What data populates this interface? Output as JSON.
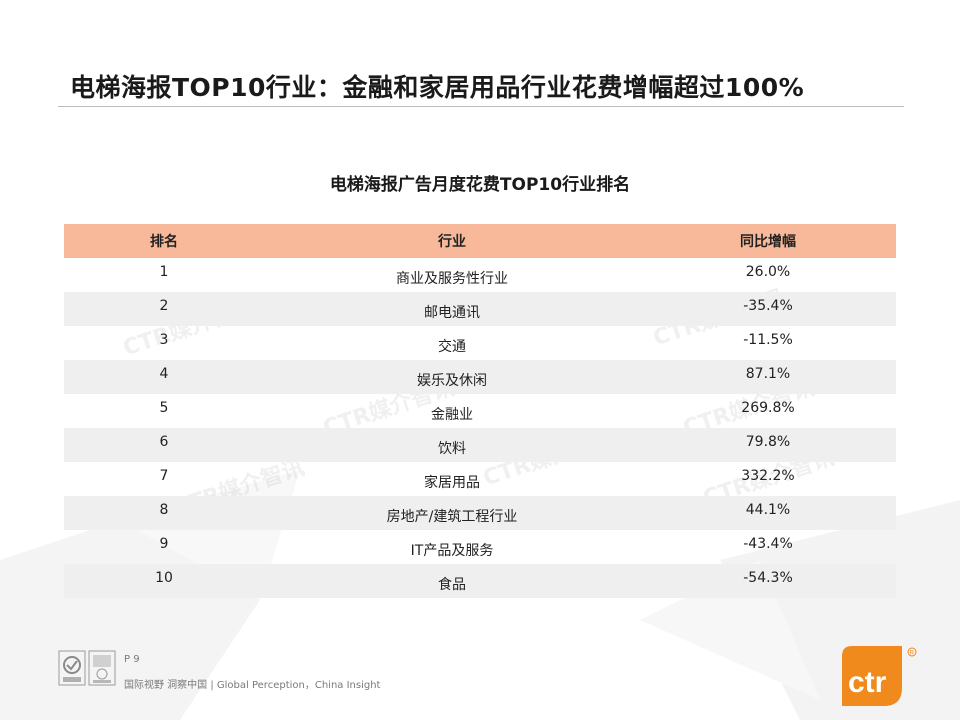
{
  "slide": {
    "title": "电梯海报TOP10行业：金融和家居用品行业花费增幅超过100%"
  },
  "table": {
    "caption": "电梯海报广告月度花费TOP10行业排名",
    "headers": [
      "排名",
      "行业",
      "同比增幅"
    ],
    "rows": [
      {
        "rank": "1",
        "industry": "商业及服务性行业",
        "growth": "26.0%"
      },
      {
        "rank": "2",
        "industry": "邮电通讯",
        "growth": "-35.4%"
      },
      {
        "rank": "3",
        "industry": "交通",
        "growth": "-11.5%"
      },
      {
        "rank": "4",
        "industry": "娱乐及休闲",
        "growth": "87.1%"
      },
      {
        "rank": "5",
        "industry": "金融业",
        "growth": "269.8%"
      },
      {
        "rank": "6",
        "industry": "饮料",
        "growth": "79.8%"
      },
      {
        "rank": "7",
        "industry": "家居用品",
        "growth": "332.2%"
      },
      {
        "rank": "8",
        "industry": "房地产/建筑工程行业",
        "growth": "44.1%"
      },
      {
        "rank": "9",
        "industry": "IT产品及服务",
        "growth": "-43.4%"
      },
      {
        "rank": "10",
        "industry": "食品",
        "growth": "-54.3%"
      }
    ]
  },
  "watermark": {
    "text": "CTR媒介智讯"
  },
  "footer": {
    "page": "P 9",
    "tagline": "国际视野 洞察中国 | Global Perception，China Insight",
    "brand": "ctr"
  },
  "colors": {
    "header_row": "#f7b99a",
    "shaded_row": "#efefef",
    "brand_orange": "#f08a1c"
  }
}
